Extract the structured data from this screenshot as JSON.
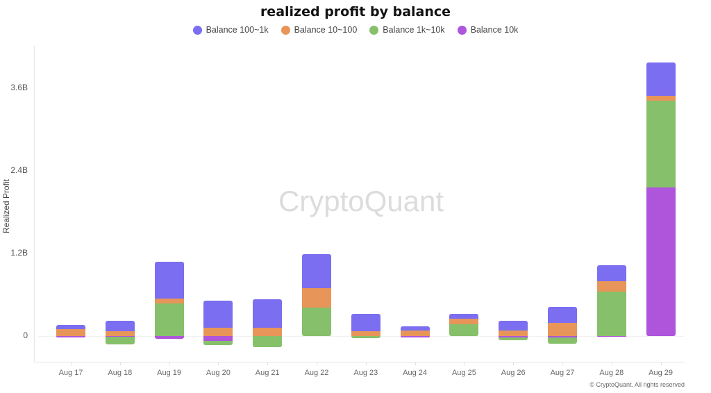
{
  "header": {
    "title": "realized profit by balance"
  },
  "legend": [
    {
      "label": "Balance 100~1k",
      "color": "#7b6ef0"
    },
    {
      "label": "Balance 10~100",
      "color": "#e8955a"
    },
    {
      "label": "Balance 1k~10k",
      "color": "#86c06a"
    },
    {
      "label": "Balance 10k",
      "color": "#ae55db"
    }
  ],
  "axes": {
    "ylabel": "Realized Profit",
    "yticks": [
      "3.6B",
      "2.4B",
      "1.2B",
      "0"
    ],
    "xticks": [
      "Aug 17",
      "Aug 18",
      "Aug 19",
      "Aug 20",
      "Aug 21",
      "Aug 22",
      "Aug 23",
      "Aug 24",
      "Aug 25",
      "Aug 26",
      "Aug 27",
      "Aug 28",
      "Aug 29"
    ]
  },
  "watermark": "CryptoQuant",
  "copyright": "© CryptoQuant. All rights reserved",
  "chart_data": {
    "type": "bar",
    "stacked": true,
    "title": "realized profit by balance",
    "xlabel": "",
    "ylabel": "Realized Profit",
    "ylim": [
      -0.4,
      4.0
    ],
    "yunit": "B (billions)",
    "yticks": [
      0,
      1.2,
      2.4,
      3.6
    ],
    "grid": false,
    "legend_position": "top",
    "categories": [
      "Aug 17",
      "Aug 18",
      "Aug 19",
      "Aug 20",
      "Aug 21",
      "Aug 22",
      "Aug 23",
      "Aug 24",
      "Aug 25",
      "Aug 26",
      "Aug 27",
      "Aug 28",
      "Aug 29"
    ],
    "series": [
      {
        "name": "Balance 100~1k",
        "color": "#7b6ef0",
        "values": [
          0.06,
          0.15,
          0.54,
          0.39,
          0.41,
          0.49,
          0.25,
          0.06,
          0.07,
          0.14,
          0.23,
          0.23,
          0.48
        ]
      },
      {
        "name": "Balance 10~100",
        "color": "#e8955a",
        "values": [
          0.1,
          0.07,
          0.07,
          0.12,
          0.12,
          0.29,
          0.07,
          0.08,
          0.08,
          0.08,
          0.19,
          0.15,
          0.07
        ]
      },
      {
        "name": "Balance 1k~10k",
        "color": "#86c06a",
        "values": [
          0.0,
          -0.11,
          0.47,
          -0.06,
          -0.16,
          0.41,
          -0.03,
          0.0,
          0.17,
          -0.04,
          -0.09,
          0.65,
          1.26
        ]
      },
      {
        "name": "Balance 10k",
        "color": "#ae55db",
        "values": [
          -0.02,
          -0.01,
          -0.04,
          -0.07,
          0.0,
          0.0,
          0.0,
          -0.02,
          0.0,
          -0.02,
          -0.02,
          -0.01,
          2.16
        ]
      }
    ]
  }
}
